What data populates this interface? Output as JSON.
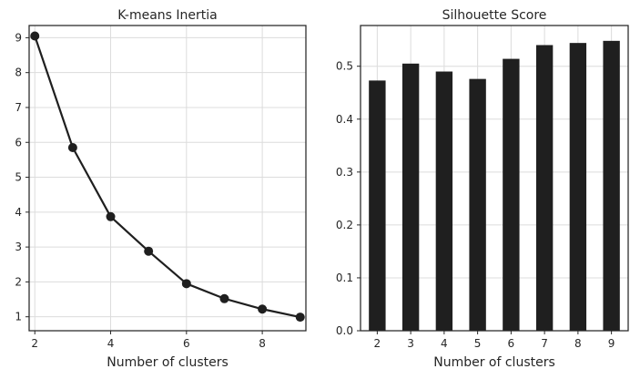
{
  "chart_data": [
    {
      "type": "line",
      "title": "K-means Inertia",
      "xlabel": "Number of clusters",
      "ylabel": "",
      "x": [
        2,
        3,
        4,
        5,
        6,
        7,
        8,
        9
      ],
      "series": [
        {
          "values": [
            9.05,
            5.85,
            3.87,
            2.88,
            1.95,
            1.52,
            1.22,
            0.99
          ],
          "color": "#1f1f1f"
        }
      ],
      "xlim": [
        1.85,
        9.15
      ],
      "ylim": [
        0.6,
        9.35
      ],
      "xticks": [
        2,
        4,
        6,
        8
      ],
      "yticks": [
        1,
        2,
        3,
        4,
        5,
        6,
        7,
        8,
        9
      ],
      "grid": true,
      "legend": "none"
    },
    {
      "type": "bar",
      "title": "Silhouette Score",
      "xlabel": "Number of clusters",
      "ylabel": "",
      "categories": [
        "2",
        "3",
        "4",
        "5",
        "6",
        "7",
        "8",
        "9"
      ],
      "series": [
        {
          "values": [
            0.473,
            0.505,
            0.49,
            0.476,
            0.514,
            0.54,
            0.544,
            0.548
          ],
          "color": "#1f1f1f"
        }
      ],
      "ylim": [
        0.0,
        0.577
      ],
      "yticks": [
        0.0,
        0.1,
        0.2,
        0.3,
        0.4,
        0.5
      ],
      "grid": true,
      "legend": "none"
    }
  ]
}
